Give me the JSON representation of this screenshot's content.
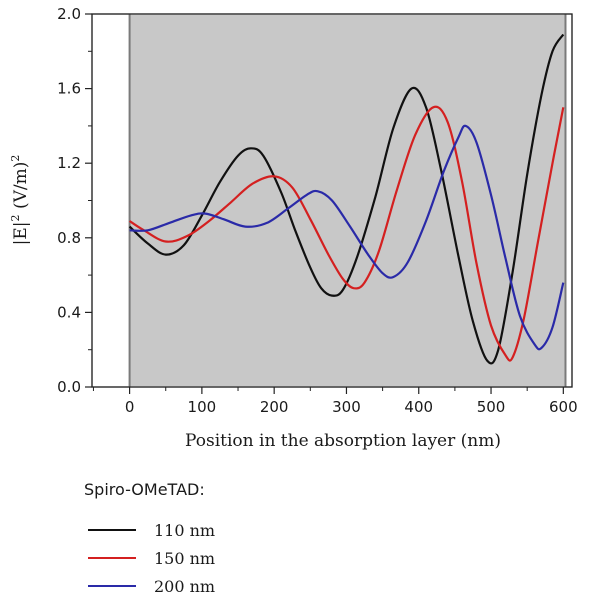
{
  "chart_data": {
    "type": "line",
    "title": "",
    "xlabel": "Position in the absorption layer (nm)",
    "ylabel": "|E|² (V/m)²",
    "xlim": [
      -52,
      612
    ],
    "ylim": [
      0,
      2.0
    ],
    "xticks": [
      "0",
      "100",
      "200",
      "300",
      "400",
      "500",
      "600"
    ],
    "yticks": [
      "0.0",
      "0.4",
      "0.8",
      "1.2",
      "1.6",
      "2.0"
    ],
    "grid": false,
    "shaded_region": {
      "x_from": 0,
      "x_to": 603,
      "color": "#c8c8c8"
    },
    "legend_position": "bottom-left, below plot",
    "legend_title": "Spiro-OMeTAD:",
    "series": [
      {
        "name": "110 nm",
        "color": "#111111",
        "points": [
          [
            0,
            0.86
          ],
          [
            25,
            0.77
          ],
          [
            50,
            0.71
          ],
          [
            75,
            0.76
          ],
          [
            100,
            0.92
          ],
          [
            125,
            1.1
          ],
          [
            150,
            1.24
          ],
          [
            168,
            1.28
          ],
          [
            185,
            1.24
          ],
          [
            210,
            1.04
          ],
          [
            230,
            0.83
          ],
          [
            250,
            0.64
          ],
          [
            265,
            0.53
          ],
          [
            280,
            0.49
          ],
          [
            295,
            0.52
          ],
          [
            315,
            0.7
          ],
          [
            340,
            1.02
          ],
          [
            365,
            1.39
          ],
          [
            390,
            1.6
          ],
          [
            410,
            1.5
          ],
          [
            430,
            1.18
          ],
          [
            455,
            0.7
          ],
          [
            475,
            0.35
          ],
          [
            495,
            0.14
          ],
          [
            510,
            0.2
          ],
          [
            530,
            0.62
          ],
          [
            550,
            1.14
          ],
          [
            570,
            1.57
          ],
          [
            585,
            1.8
          ],
          [
            600,
            1.89
          ]
        ]
      },
      {
        "name": "150 nm",
        "color": "#d42020",
        "points": [
          [
            0,
            0.89
          ],
          [
            20,
            0.84
          ],
          [
            50,
            0.78
          ],
          [
            80,
            0.81
          ],
          [
            110,
            0.89
          ],
          [
            140,
            0.99
          ],
          [
            170,
            1.09
          ],
          [
            200,
            1.13
          ],
          [
            225,
            1.07
          ],
          [
            250,
            0.9
          ],
          [
            275,
            0.71
          ],
          [
            295,
            0.58
          ],
          [
            310,
            0.53
          ],
          [
            325,
            0.56
          ],
          [
            345,
            0.73
          ],
          [
            370,
            1.06
          ],
          [
            395,
            1.35
          ],
          [
            420,
            1.5
          ],
          [
            440,
            1.42
          ],
          [
            460,
            1.1
          ],
          [
            480,
            0.66
          ],
          [
            500,
            0.33
          ],
          [
            520,
            0.17
          ],
          [
            530,
            0.16
          ],
          [
            545,
            0.36
          ],
          [
            565,
            0.78
          ],
          [
            585,
            1.2
          ],
          [
            600,
            1.5
          ]
        ]
      },
      {
        "name": "200 nm",
        "color": "#2a2aa8",
        "points": [
          [
            0,
            0.84
          ],
          [
            25,
            0.84
          ],
          [
            55,
            0.88
          ],
          [
            85,
            0.92
          ],
          [
            105,
            0.93
          ],
          [
            130,
            0.9
          ],
          [
            160,
            0.86
          ],
          [
            190,
            0.88
          ],
          [
            220,
            0.96
          ],
          [
            245,
            1.03
          ],
          [
            260,
            1.05
          ],
          [
            280,
            1.0
          ],
          [
            305,
            0.86
          ],
          [
            330,
            0.71
          ],
          [
            350,
            0.61
          ],
          [
            365,
            0.59
          ],
          [
            385,
            0.67
          ],
          [
            410,
            0.89
          ],
          [
            435,
            1.16
          ],
          [
            455,
            1.34
          ],
          [
            465,
            1.4
          ],
          [
            480,
            1.31
          ],
          [
            500,
            1.03
          ],
          [
            520,
            0.69
          ],
          [
            540,
            0.38
          ],
          [
            560,
            0.23
          ],
          [
            570,
            0.21
          ],
          [
            585,
            0.32
          ],
          [
            600,
            0.56
          ]
        ]
      }
    ]
  }
}
